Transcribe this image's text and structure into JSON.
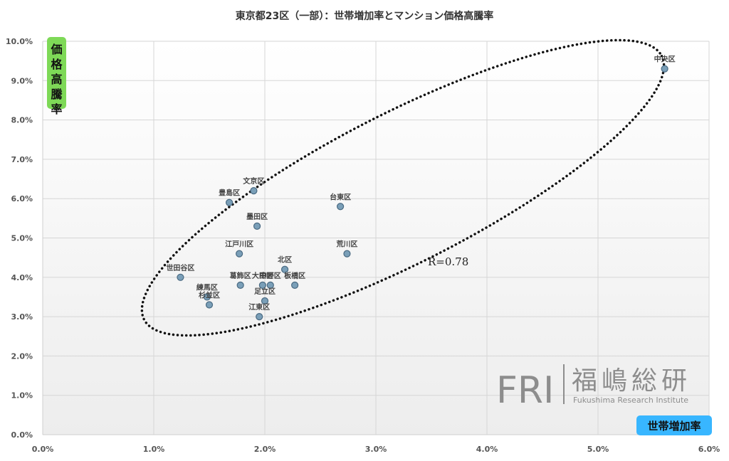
{
  "chart_data": {
    "type": "scatter",
    "title": "東京都23区（一部）：世帯増加率とマンション価格高騰率",
    "xlabel": "世帯増加率",
    "ylabel": "価格高騰率",
    "xlim": [
      0,
      6
    ],
    "ylim": [
      0,
      10
    ],
    "x_ticks": [
      "0.0%",
      "1.0%",
      "2.0%",
      "3.0%",
      "4.0%",
      "5.0%",
      "6.0%"
    ],
    "y_ticks": [
      "0.0%",
      "1.0%",
      "2.0%",
      "3.0%",
      "4.0%",
      "5.0%",
      "6.0%",
      "7.0%",
      "8.0%",
      "9.0%",
      "10.0%"
    ],
    "grid": true,
    "annotation": "R=0.78",
    "points": [
      {
        "label": "中央区",
        "x": 5.6,
        "y": 9.3
      },
      {
        "label": "文京区",
        "x": 1.9,
        "y": 6.2
      },
      {
        "label": "豊島区",
        "x": 1.68,
        "y": 5.9
      },
      {
        "label": "台東区",
        "x": 2.68,
        "y": 5.8
      },
      {
        "label": "墨田区",
        "x": 1.93,
        "y": 5.3
      },
      {
        "label": "江戸川区",
        "x": 1.77,
        "y": 4.6
      },
      {
        "label": "荒川区",
        "x": 2.74,
        "y": 4.6
      },
      {
        "label": "北区",
        "x": 2.18,
        "y": 4.2
      },
      {
        "label": "世田谷区",
        "x": 1.24,
        "y": 4.0
      },
      {
        "label": "葛飾区",
        "x": 1.78,
        "y": 3.8
      },
      {
        "label": "中野区",
        "x": 2.05,
        "y": 3.8
      },
      {
        "label": "板橋区",
        "x": 2.27,
        "y": 3.8
      },
      {
        "label": "大田区",
        "x": 1.98,
        "y": 3.8
      },
      {
        "label": "練馬区",
        "x": 1.48,
        "y": 3.5
      },
      {
        "label": "杉並区",
        "x": 1.5,
        "y": 3.3
      },
      {
        "label": "足立区",
        "x": 2.0,
        "y": 3.4
      },
      {
        "label": "江東区",
        "x": 1.95,
        "y": 3.0
      }
    ],
    "colors": {
      "marker_fill": "#7a9fb8",
      "marker_stroke": "#4a6a82",
      "ylabel_bg": "#7ed957",
      "xlabel_bg": "#38b6ff"
    }
  },
  "logo": {
    "mark": "FRI",
    "name_jp": "福嶋総研",
    "name_en": "Fukushima Research Institute"
  }
}
